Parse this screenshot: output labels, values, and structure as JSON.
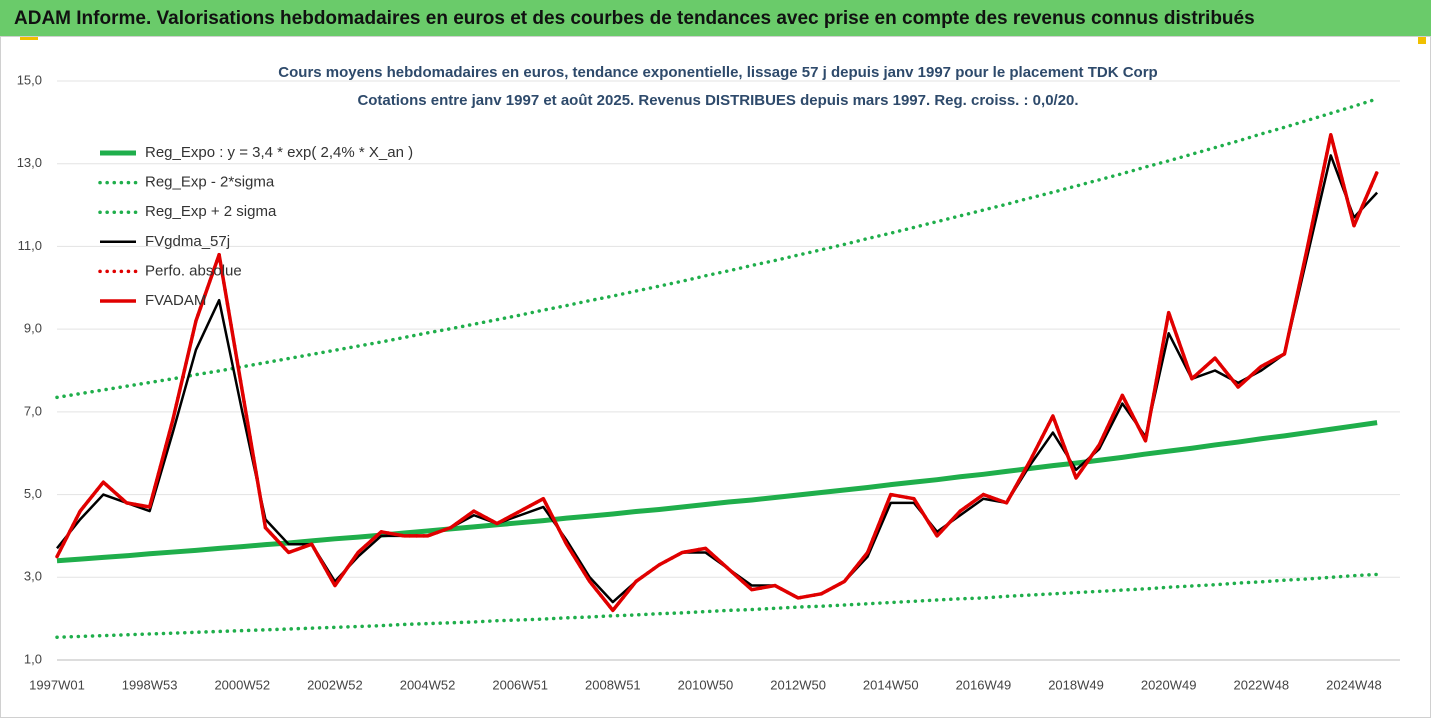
{
  "header": {
    "title": "ADAM Informe. Valorisations hebdomadaires en euros et des courbes de tendances avec prise en compte des revenus connus distribués"
  },
  "chart_data": {
    "type": "line",
    "title": "Cours moyens hebdomadaires en euros, tendance exponentielle, lissage 57 j depuis janv 1997 pour le placement TDK Corp",
    "subtitle": "Cotations entre janv 1997 et août 2025. Revenus DISTRIBUES depuis mars 1997. Reg. croiss. : 0,0/20.",
    "categories": [
      "1997W01",
      null,
      null,
      null,
      "1998W53",
      null,
      null,
      null,
      "2000W52",
      null,
      null,
      null,
      "2002W52",
      null,
      null,
      null,
      "2004W52",
      null,
      null,
      null,
      "2006W51",
      null,
      null,
      null,
      "2008W51",
      null,
      null,
      null,
      "2010W50",
      null,
      null,
      null,
      "2012W50",
      null,
      null,
      null,
      "2014W50",
      null,
      null,
      null,
      "2016W49",
      null,
      null,
      null,
      "2018W49",
      null,
      null,
      null,
      "2020W49",
      null,
      null,
      null,
      "2022W48",
      null,
      null,
      null,
      "2024W48",
      null
    ],
    "ylim": [
      1,
      15
    ],
    "yticks": [
      {
        "value": 1,
        "label": "1,0"
      },
      {
        "value": 3,
        "label": "3,0"
      },
      {
        "value": 5,
        "label": "5,0"
      },
      {
        "value": 7,
        "label": "7,0"
      },
      {
        "value": 9,
        "label": "9,0"
      },
      {
        "value": 11,
        "label": "11,0"
      },
      {
        "value": 13,
        "label": "13,0"
      },
      {
        "value": 15,
        "label": "15,0"
      }
    ],
    "grid": true,
    "legend": "upper left",
    "series": [
      {
        "name": "Reg_Expo : y = 3,4 * exp( 2,4% *  X_an )",
        "color": "#1fae4b",
        "dash": "solid",
        "values": [
          3.4,
          3.44,
          3.48,
          3.52,
          3.57,
          3.61,
          3.65,
          3.7,
          3.74,
          3.79,
          3.83,
          3.88,
          3.93,
          3.97,
          4.02,
          4.07,
          4.12,
          4.17,
          4.22,
          4.27,
          4.32,
          4.37,
          4.43,
          4.48,
          4.53,
          4.59,
          4.64,
          4.7,
          4.76,
          4.82,
          4.87,
          4.93,
          4.99,
          5.05,
          5.11,
          5.17,
          5.24,
          5.3,
          5.36,
          5.43,
          5.49,
          5.56,
          5.63,
          5.7,
          5.76,
          5.83,
          5.9,
          5.98,
          6.05,
          6.12,
          6.2,
          6.27,
          6.35,
          6.42,
          6.5,
          6.58,
          6.66,
          6.74
        ]
      },
      {
        "name": "Reg_Exp - 2*sigma",
        "color": "#1fae4b",
        "dash": "dotted",
        "values": [
          1.55,
          1.57,
          1.59,
          1.61,
          1.63,
          1.65,
          1.67,
          1.69,
          1.71,
          1.73,
          1.75,
          1.77,
          1.79,
          1.81,
          1.83,
          1.86,
          1.88,
          1.9,
          1.92,
          1.95,
          1.97,
          1.99,
          2.02,
          2.04,
          2.07,
          2.09,
          2.12,
          2.14,
          2.17,
          2.2,
          2.22,
          2.25,
          2.28,
          2.3,
          2.33,
          2.36,
          2.39,
          2.42,
          2.45,
          2.48,
          2.5,
          2.54,
          2.57,
          2.6,
          2.63,
          2.66,
          2.69,
          2.72,
          2.76,
          2.79,
          2.82,
          2.86,
          2.89,
          2.93,
          2.96,
          3.0,
          3.04,
          3.07
        ]
      },
      {
        "name": "Reg_Exp + 2 sigma",
        "color": "#1fae4b",
        "dash": "dotted",
        "values": [
          7.35,
          7.44,
          7.53,
          7.62,
          7.71,
          7.8,
          7.9,
          7.99,
          8.09,
          8.19,
          8.29,
          8.39,
          8.49,
          8.59,
          8.69,
          8.8,
          8.91,
          9.01,
          9.12,
          9.23,
          9.34,
          9.46,
          9.57,
          9.69,
          9.8,
          9.92,
          10.04,
          10.16,
          10.29,
          10.41,
          10.54,
          10.66,
          10.79,
          10.92,
          11.05,
          11.19,
          11.32,
          11.46,
          11.6,
          11.74,
          11.88,
          12.02,
          12.17,
          12.31,
          12.46,
          12.61,
          12.76,
          12.92,
          13.07,
          13.23,
          13.39,
          13.55,
          13.72,
          13.88,
          14.05,
          14.22,
          14.39,
          14.57
        ]
      },
      {
        "name": "FVgdma_57j",
        "color": "#000000",
        "dash": "solid",
        "values": [
          3.7,
          4.4,
          5.0,
          4.8,
          4.6,
          6.5,
          8.5,
          9.7,
          7.0,
          4.4,
          3.8,
          3.8,
          2.9,
          3.5,
          4.0,
          4.0,
          4.0,
          4.2,
          4.5,
          4.3,
          4.5,
          4.7,
          3.9,
          3.0,
          2.4,
          2.9,
          3.3,
          3.6,
          3.6,
          3.2,
          2.8,
          2.8,
          2.5,
          2.6,
          2.9,
          3.5,
          4.8,
          4.8,
          4.1,
          4.5,
          4.9,
          4.8,
          5.7,
          6.5,
          5.6,
          6.1,
          7.2,
          6.4,
          8.9,
          7.8,
          8.0,
          7.7,
          8.0,
          8.4,
          10.8,
          13.2,
          11.7,
          12.3
        ]
      },
      {
        "name": "Perfo. absolue",
        "color": "#e00000",
        "dash": "dotted",
        "values": [
          3.5,
          4.6,
          5.3,
          4.8,
          4.7,
          6.8,
          9.2,
          10.8,
          7.5,
          4.2,
          3.6,
          3.8,
          2.8,
          3.6,
          4.1,
          4.0,
          4.0,
          4.2,
          4.6,
          4.3,
          4.6,
          4.9,
          3.8,
          2.9,
          2.2,
          2.9,
          3.3,
          3.6,
          3.7,
          3.2,
          2.7,
          2.8,
          2.5,
          2.6,
          2.9,
          3.6,
          5.0,
          4.9,
          4.0,
          4.6,
          5.0,
          4.8,
          5.8,
          6.9,
          5.4,
          6.2,
          7.4,
          6.3,
          9.4,
          7.8,
          8.3,
          7.6,
          8.1,
          8.4,
          11.0,
          13.7,
          11.5,
          12.8
        ]
      },
      {
        "name": "FVADAM",
        "color": "#e00000",
        "dash": "solid",
        "values": [
          3.5,
          4.6,
          5.3,
          4.8,
          4.7,
          6.8,
          9.2,
          10.8,
          7.5,
          4.2,
          3.6,
          3.8,
          2.8,
          3.6,
          4.1,
          4.0,
          4.0,
          4.2,
          4.6,
          4.3,
          4.6,
          4.9,
          3.8,
          2.9,
          2.2,
          2.9,
          3.3,
          3.6,
          3.7,
          3.2,
          2.7,
          2.8,
          2.5,
          2.6,
          2.9,
          3.6,
          5.0,
          4.9,
          4.0,
          4.6,
          5.0,
          4.8,
          5.8,
          6.9,
          5.4,
          6.2,
          7.4,
          6.3,
          9.4,
          7.8,
          8.3,
          7.6,
          8.1,
          8.4,
          11.0,
          13.7,
          11.5,
          12.8
        ]
      }
    ]
  }
}
